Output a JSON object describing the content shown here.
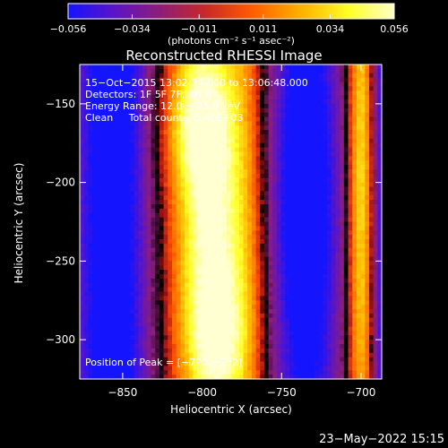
{
  "colorbar": {
    "tick_labels": [
      "−0.056",
      "−0.034",
      "−0.011",
      "0.011",
      "0.034",
      "0.056"
    ],
    "tick_values": [
      -0.056,
      -0.034,
      -0.011,
      0.011,
      0.034,
      0.056
    ],
    "range": [
      -0.056,
      0.056
    ],
    "units_label": "(photons cm⁻² s⁻¹ asec⁻²)",
    "colormap": [
      "#1414ff",
      "#5a14c8",
      "#8c1e78",
      "#c82828",
      "#ff5a00",
      "#ffb400",
      "#ffff28",
      "#ffffc8"
    ]
  },
  "chart_data": {
    "type": "heatmap",
    "title": "Reconstructed RHESSI Image",
    "xlabel": "Heliocentric X (arcsec)",
    "ylabel": "Heliocentric Y (arcsec)",
    "xlim": [
      -877,
      -687
    ],
    "ylim": [
      -325,
      -125
    ],
    "x_ticks": [
      -850,
      -800,
      -750,
      -700
    ],
    "x_tick_labels": [
      "−850",
      "−800",
      "−750",
      "−700"
    ],
    "y_ticks": [
      -150,
      -200,
      -250,
      -300
    ],
    "y_tick_labels": [
      "−150",
      "−200",
      "−250",
      "−300"
    ],
    "info_lines": [
      "15−Oct−2015 13:02:24.000 to 13:06:48.000",
      "Detectors: 1F 5F 7F, Att 0",
      "Energy Range: 12.0 − 25.0 keV",
      "Clean     Total counts: 5.40E+03"
    ],
    "peak_label": "Position of Peak = [−792,−232]",
    "peak": [
      -792,
      -232
    ]
  },
  "footer": {
    "timestamp": "23−May−2022 15:15"
  }
}
